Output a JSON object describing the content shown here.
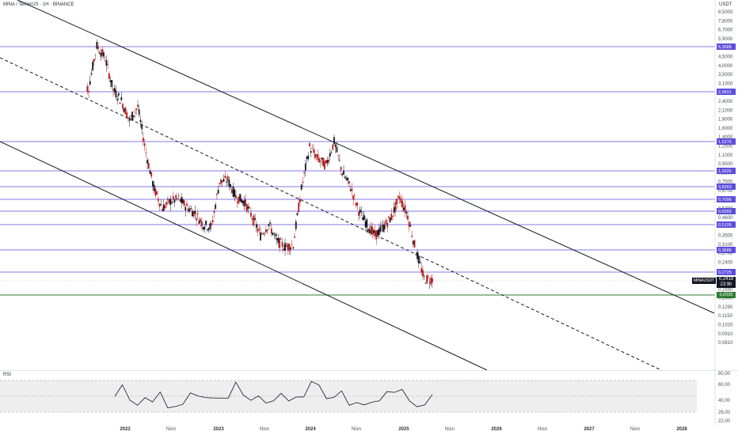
{
  "header": {
    "title": "MINA / TetherUS · 1H · BINANCE",
    "currency": "USDT"
  },
  "price_axis": {
    "ticks": [
      "8,5000",
      "7,8000",
      "6,7000",
      "5,9000",
      "5,1000",
      "4,5000",
      "4,0000",
      "3,5000",
      "3,1000",
      "2,7000",
      "2,4000",
      "2,1000",
      "1,8000",
      "1,6000",
      "1,4000",
      "1,2500",
      "1,1000",
      "0,9500",
      "0,8500",
      "0,7500",
      "0,6700",
      "0,5900",
      "0,5200",
      "0,4600",
      "0,4000",
      "0,3500",
      "0,3100",
      "0,2700",
      "0,2400",
      "0,2100",
      "0,1850",
      "0,1650",
      "0,1450",
      "0,1290",
      "0,1150",
      "0,1020",
      "0,0910",
      "0,0810"
    ]
  },
  "horizontal_levels": [
    {
      "label": "5,3588",
      "color": "#5c4ddb"
    },
    {
      "label": "2,9601",
      "color": "#5c4ddb"
    },
    {
      "label": "1,5275",
      "color": "#5c4ddb"
    },
    {
      "label": "1,0326",
      "color": "#5c4ddb"
    },
    {
      "label": "0,8263",
      "color": "#5c4ddb"
    },
    {
      "label": "0,7096",
      "color": "#5c4ddb"
    },
    {
      "label": "0,6093",
      "color": "#5c4ddb"
    },
    {
      "label": "0,5105",
      "color": "#5c4ddb"
    },
    {
      "label": "0,3686",
      "color": "#5c4ddb"
    },
    {
      "label": "0,2725",
      "color": "#5c4ddb"
    },
    {
      "label": "0,2035",
      "color": "#2e7d32"
    }
  ],
  "last_price": {
    "symbol": "MINAUSDT",
    "value": "0,2418",
    "countdown": "23:9h"
  },
  "rsi": {
    "title": "RSI",
    "ticks": [
      "80,00",
      "60,00",
      "40,00",
      "26,00",
      "22,00"
    ]
  },
  "time_axis": {
    "labels": [
      {
        "text": "2022",
        "year": true
      },
      {
        "text": "Nisn",
        "year": false
      },
      {
        "text": "2023",
        "year": true
      },
      {
        "text": "Nisn",
        "year": false
      },
      {
        "text": "2024",
        "year": true
      },
      {
        "text": "Nisn",
        "year": false
      },
      {
        "text": "2025",
        "year": true
      },
      {
        "text": "Nisn",
        "year": false
      },
      {
        "text": "2026",
        "year": true
      },
      {
        "text": "Nisn",
        "year": false
      },
      {
        "text": "2027",
        "year": true
      },
      {
        "text": "Nisn",
        "year": false
      },
      {
        "text": "2028",
        "year": true
      }
    ]
  },
  "colors": {
    "up_candle": "#131722",
    "down_candle": "#b71c1c",
    "level_line": "#5c4ddb",
    "support_line": "#2e7d32",
    "channel_line": "#131722"
  },
  "chart_data": {
    "type": "candlestick",
    "title": "MINA / TetherUS · 1H · BINANCE",
    "ylabel": "USDT",
    "y_scale": "log",
    "x": [
      "2021-09",
      "2021-10",
      "2021-11",
      "2021-12",
      "2022-01",
      "2022-02",
      "2022-03",
      "2022-04",
      "2022-05",
      "2022-06",
      "2022-07",
      "2022-08",
      "2022-09",
      "2022-10",
      "2022-11",
      "2022-12",
      "2023-01",
      "2023-02",
      "2023-03",
      "2023-04",
      "2023-05",
      "2023-06",
      "2023-07",
      "2023-08",
      "2023-09",
      "2023-10",
      "2023-11",
      "2023-12",
      "2024-01",
      "2024-02",
      "2024-03",
      "2024-04",
      "2024-05",
      "2024-06",
      "2024-07",
      "2024-08",
      "2024-09",
      "2024-10",
      "2024-11",
      "2024-12",
      "2025-01",
      "2025-02",
      "2025-03"
    ],
    "close": [
      3.1,
      5.4,
      4.6,
      3.0,
      2.6,
      2.0,
      2.4,
      1.3,
      0.8,
      0.62,
      0.68,
      0.7,
      0.63,
      0.58,
      0.5,
      0.48,
      0.88,
      0.9,
      0.72,
      0.68,
      0.55,
      0.43,
      0.5,
      0.4,
      0.37,
      0.38,
      0.8,
      1.4,
      1.2,
      1.1,
      1.5,
      1.0,
      0.82,
      0.6,
      0.5,
      0.43,
      0.48,
      0.55,
      0.72,
      0.56,
      0.35,
      0.24,
      0.24
    ],
    "ylim": [
      0.08,
      8.5
    ]
  }
}
